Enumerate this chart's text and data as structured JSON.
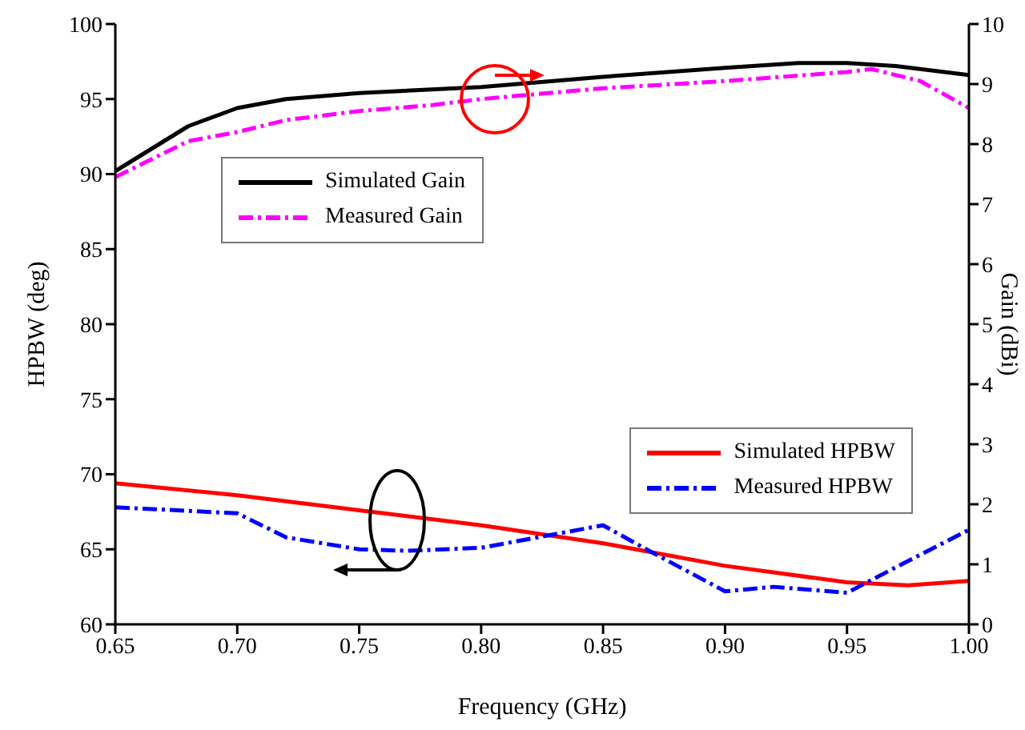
{
  "chart_data": {
    "type": "line",
    "xlabel": "Frequency (GHz)",
    "ylabel": "HPBW (deg)",
    "y2label": "Gain (dBi)",
    "xlim": [
      0.65,
      1.0
    ],
    "xticks": [
      0.65,
      {
        "value": 0.7,
        "label": "0.70"
      },
      0.75,
      {
        "value": 0.8,
        "label": "0.80"
      },
      0.85,
      {
        "value": 0.9,
        "label": "0.90"
      },
      0.95,
      {
        "value": 1.0,
        "label": "1.00"
      }
    ],
    "ylim": [
      60,
      100
    ],
    "yticks": [
      60,
      65,
      70,
      75,
      80,
      85,
      90,
      95,
      100
    ],
    "y2lim": [
      0,
      10
    ],
    "y2ticks": [
      0,
      1,
      2,
      3,
      4,
      5,
      6,
      7,
      8,
      9,
      10
    ],
    "legend": "bottom right",
    "marker": "none",
    "series": [
      {
        "name": "Simulated Gain",
        "color": "#000000",
        "axis": "y2",
        "line_style": "solid",
        "x": [
          0.65,
          0.66,
          0.68,
          0.7,
          0.72,
          0.75,
          0.8,
          0.85,
          0.9,
          0.93,
          0.95,
          0.97,
          1.0
        ],
        "values": [
          7.55,
          7.8,
          8.3,
          8.6,
          8.75,
          8.85,
          8.95,
          9.12,
          9.27,
          9.35,
          9.35,
          9.3,
          9.15
        ]
      },
      {
        "name": "Measured Gain",
        "color": "#ff00ff",
        "axis": "y2",
        "line_style": "dashdot",
        "x": [
          0.65,
          0.68,
          0.7,
          0.72,
          0.75,
          0.78,
          0.8,
          0.85,
          0.9,
          0.95,
          0.96,
          0.98,
          1.0
        ],
        "values": [
          7.45,
          8.05,
          8.2,
          8.4,
          8.55,
          8.65,
          8.75,
          8.93,
          9.05,
          9.2,
          9.25,
          9.05,
          8.6
        ]
      },
      {
        "name": "Simulated HPBW",
        "color": "#ff0000",
        "axis": "y",
        "line_style": "solid",
        "x": [
          0.65,
          0.7,
          0.75,
          0.8,
          0.85,
          0.9,
          0.95,
          0.975,
          1.0
        ],
        "values": [
          69.4,
          68.6,
          67.6,
          66.6,
          65.4,
          63.9,
          62.8,
          62.6,
          62.9
        ]
      },
      {
        "name": "Measured HPBW",
        "color": "#0000ff",
        "axis": "y",
        "line_style": "dashdot",
        "x": [
          0.65,
          0.7,
          0.72,
          0.75,
          0.77,
          0.8,
          0.83,
          0.85,
          0.87,
          0.9,
          0.92,
          0.95,
          0.97,
          1.0
        ],
        "values": [
          67.8,
          67.4,
          65.8,
          65.0,
          64.9,
          65.1,
          66.0,
          66.6,
          64.8,
          62.2,
          62.5,
          62.1,
          63.8,
          66.3
        ]
      }
    ]
  }
}
